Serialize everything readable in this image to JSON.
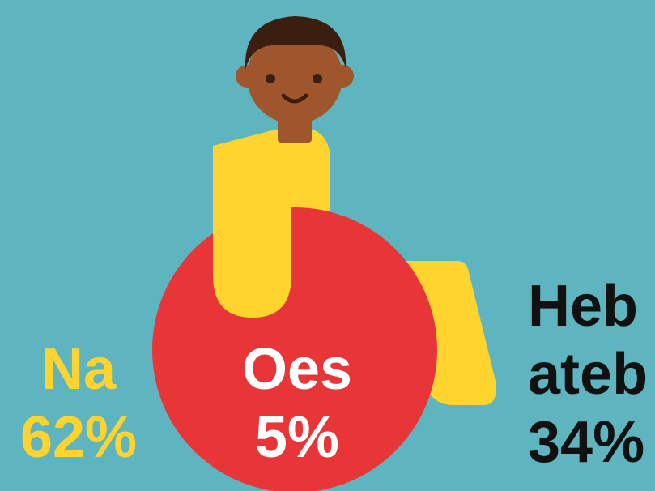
{
  "colors": {
    "background": "#5FB5BF",
    "na": "#FFD42F",
    "oes": "#E83538",
    "heb_ateb": "#111111",
    "skin": "#A0562C",
    "hair": "#3A1F10",
    "white": "#FFFFFF"
  },
  "chart_data": {
    "type": "infographic",
    "title": "",
    "categories": [
      "Na",
      "Oes",
      "Heb ateb"
    ],
    "values": [
      62,
      5,
      34
    ],
    "unit": "%",
    "labels": [
      {
        "line1": "Na",
        "line2": "62%",
        "color": "#FFD42F"
      },
      {
        "line1": "Oes",
        "line2": "5%",
        "color": "#FFFFFF"
      },
      {
        "line1": "Heb",
        "line1b": "ateb",
        "line2": "34%",
        "color": "#111111"
      }
    ]
  }
}
